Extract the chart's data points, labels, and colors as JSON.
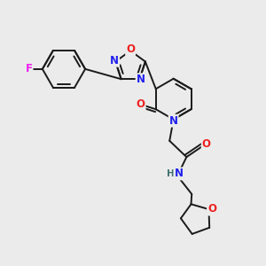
{
  "bg_color": "#ebebeb",
  "bond_color": "#1a1a1a",
  "bond_width": 1.4,
  "atom_colors": {
    "N": "#2020ee",
    "O": "#ee2020",
    "F": "#ee20ee",
    "H": "#407070",
    "C": "#1a1a1a"
  },
  "font_size": 8.5
}
